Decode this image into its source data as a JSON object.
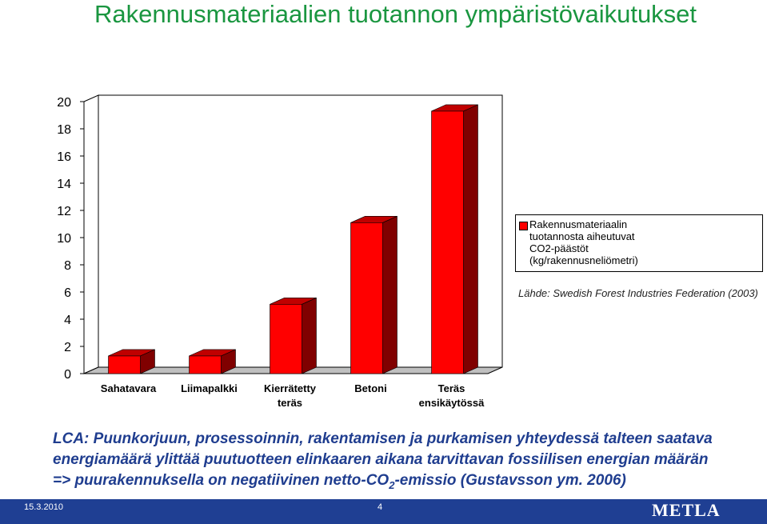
{
  "header": {
    "title": "Rakennusmateriaalien tuotannon ympäristövaikutukset"
  },
  "chart_data": {
    "type": "bar",
    "categories": [
      "Sahatavara",
      "Liimapalkki",
      "Kierrätetty\nteräs",
      "Betoni",
      "Teräs\nensikäytössä"
    ],
    "series": [
      {
        "name": "Rakennusmateriaalin\ntuotannosta aiheutuvat\nCO2-päästöt\n(kg/rakennusneliömetri)",
        "color": "#ff0000",
        "values": [
          1.3,
          1.3,
          5.1,
          11.1,
          19.3
        ]
      }
    ],
    "ylim": [
      0,
      20
    ],
    "yticks": [
      0,
      2,
      4,
      6,
      8,
      10,
      12,
      14,
      16,
      18,
      20
    ],
    "annotation": "Lähde: Swedish Forest Industries Federation (2003)"
  },
  "body": {
    "lines": [
      "LCA: Puunkorjuun, prosessoinnin, rakentamisen ja purkamisen yhteydessä talteen saatava",
      "energiamäärä ylittää puutuotteen elinkaaren aikana tarvittavan fossiilisen energian määrän"
    ],
    "last_line": {
      "before": "=> puurakennuksella on negatiivinen netto-CO",
      "subscript": "2",
      "after": "-emissio (Gustavsson ym. 2006)"
    }
  },
  "footer": {
    "date": "15.3.2010",
    "page": "4",
    "logo": "METLA"
  }
}
